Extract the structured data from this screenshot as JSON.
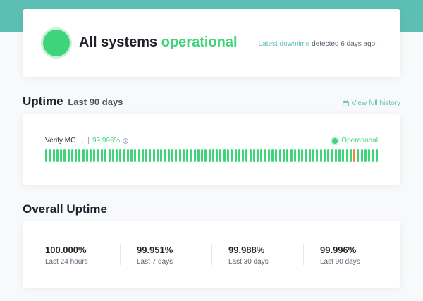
{
  "status": {
    "headline_prefix": "All systems",
    "headline_state": "operational",
    "downtime_link": "Latest downtime",
    "downtime_suffix": " detected 6 days ago."
  },
  "uptime": {
    "title": "Uptime",
    "subtitle": "Last 90 days",
    "history_link": "View full history",
    "service": {
      "name": "Verify MC",
      "arrow": "→",
      "separator": "|",
      "percent": "99.996%",
      "state": "Operational",
      "days": 90,
      "incident_day_index": 83
    }
  },
  "overall": {
    "title": "Overall Uptime",
    "stats": [
      {
        "value": "100.000%",
        "label": "Last 24 hours"
      },
      {
        "value": "99.951%",
        "label": "Last 7 days"
      },
      {
        "value": "99.988%",
        "label": "Last 30 days"
      },
      {
        "value": "99.996%",
        "label": "Last 90 days"
      }
    ]
  },
  "colors": {
    "accent": "#5dbfb4",
    "operational": "#3dd47a",
    "incident": "#f08a24"
  },
  "icons": {
    "status": "status-indicator-icon",
    "calendar": "calendar-icon",
    "info": "clock-icon"
  }
}
